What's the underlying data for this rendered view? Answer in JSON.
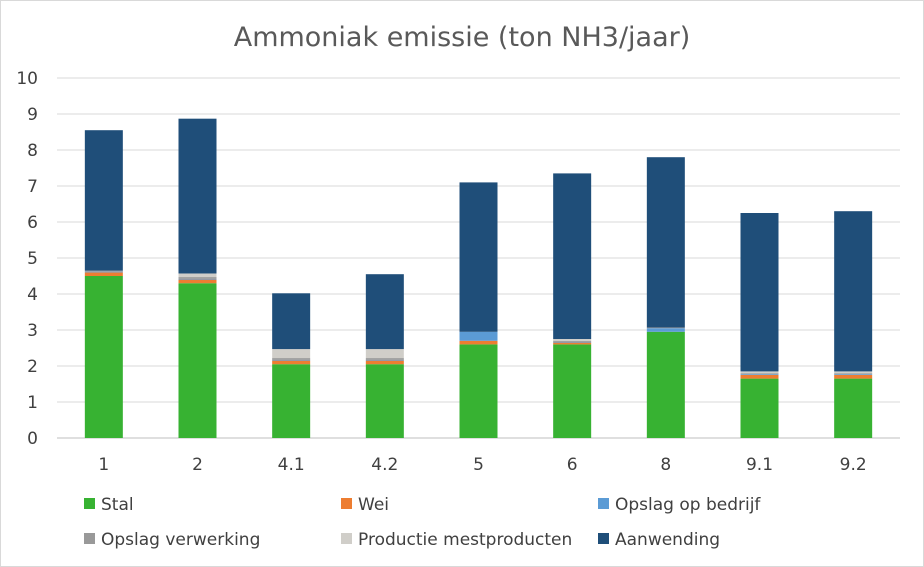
{
  "chart_data": {
    "type": "bar",
    "stacked": true,
    "title": "Ammoniak emissie (ton NH3/jaar)",
    "xlabel": "",
    "ylabel": "",
    "ylim": [
      0,
      10
    ],
    "yticks": [
      0,
      1,
      2,
      3,
      4,
      5,
      6,
      7,
      8,
      9,
      10
    ],
    "grid": true,
    "legend_position": "bottom",
    "categories": [
      "1",
      "2",
      "4.1",
      "4.2",
      "5",
      "6",
      "8",
      "9.1",
      "9.2"
    ],
    "series": [
      {
        "name": "Stal",
        "color": "#37b232",
        "values": [
          4.5,
          4.3,
          2.05,
          2.05,
          2.6,
          2.6,
          2.95,
          1.65,
          1.65
        ]
      },
      {
        "name": "Wei",
        "color": "#ed7d31",
        "values": [
          0.1,
          0.1,
          0.1,
          0.1,
          0.1,
          0.05,
          0.0,
          0.1,
          0.1
        ]
      },
      {
        "name": "Opslag op bedrijf",
        "color": "#5b9bd5",
        "values": [
          0.02,
          0.02,
          0.02,
          0.02,
          0.25,
          0.02,
          0.1,
          0.02,
          0.02
        ]
      },
      {
        "name": "Opslag verwerking",
        "color": "#999999",
        "values": [
          0.03,
          0.05,
          0.05,
          0.05,
          0.0,
          0.03,
          0.02,
          0.03,
          0.03
        ]
      },
      {
        "name": "Productie mestproducten",
        "color": "#d0cec9",
        "values": [
          0.0,
          0.1,
          0.25,
          0.25,
          0.0,
          0.05,
          0.0,
          0.05,
          0.05
        ]
      },
      {
        "name": "Aanwending",
        "color": "#1f4e79",
        "values": [
          3.9,
          4.3,
          1.55,
          2.08,
          4.15,
          4.6,
          4.73,
          4.4,
          4.45
        ]
      }
    ]
  }
}
